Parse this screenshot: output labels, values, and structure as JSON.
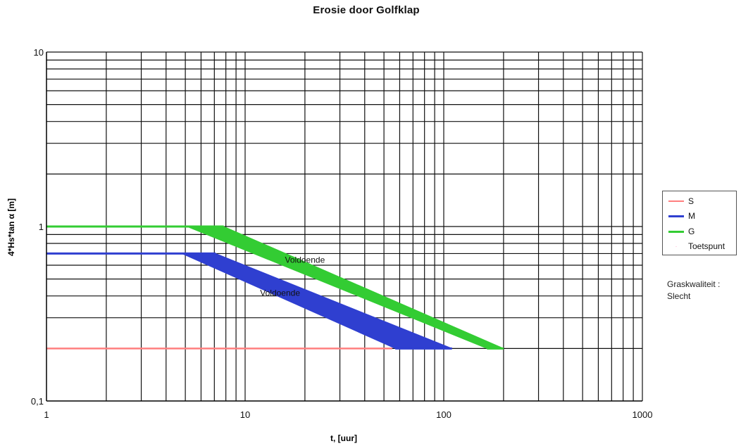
{
  "chart_data": {
    "type": "area",
    "title": "Erosie door Golfklap",
    "xlabel": "t, [uur]",
    "ylabel": "4*Hs*tan α [m]",
    "x_scale": "log",
    "y_scale": "log",
    "xlim": [
      1,
      1000
    ],
    "ylim": [
      0.1,
      10
    ],
    "grid": true,
    "x_ticks": [
      "1",
      "10",
      "100",
      "1000"
    ],
    "y_ticks": [
      "0,1",
      "1",
      "10"
    ],
    "legend_position": "right",
    "series": [
      {
        "name": "S",
        "color": "#ff7f7f",
        "x": [
          1,
          55
        ],
        "y": [
          0.2,
          0.2
        ]
      },
      {
        "name": "M",
        "color": "#2f3fd0",
        "x": [
          1,
          4.8,
          7.1,
          57,
          110
        ],
        "y_lower": [
          0.7,
          0.7,
          0.7,
          0.2,
          0.2
        ],
        "y_upper": [
          0.7,
          0.7,
          0.7,
          0.2,
          0.2
        ],
        "band_lower": {
          "x": [
            4.8,
            57
          ],
          "y": [
            0.7,
            0.2
          ]
        },
        "band_upper": {
          "x": [
            7.1,
            110
          ],
          "y": [
            0.7,
            0.2
          ]
        }
      },
      {
        "name": "G",
        "color": "#33cc33",
        "x": [
          1,
          5.1,
          7.8,
          165,
          200
        ],
        "band_lower": {
          "x": [
            5.1,
            165
          ],
          "y": [
            1,
            0.2
          ]
        },
        "band_upper": {
          "x": [
            7.8,
            200
          ],
          "y": [
            1,
            0.2
          ]
        }
      },
      {
        "name": "Toetspunt",
        "color": "#ffaacc",
        "x": [],
        "y": []
      }
    ],
    "annotations": [
      {
        "text": "Voldoende",
        "x": 20,
        "y": 0.62
      },
      {
        "text": "Voldoende",
        "x": 15,
        "y": 0.4
      }
    ],
    "note_lines": [
      "Graskwaliteit :",
      "Slecht"
    ]
  }
}
